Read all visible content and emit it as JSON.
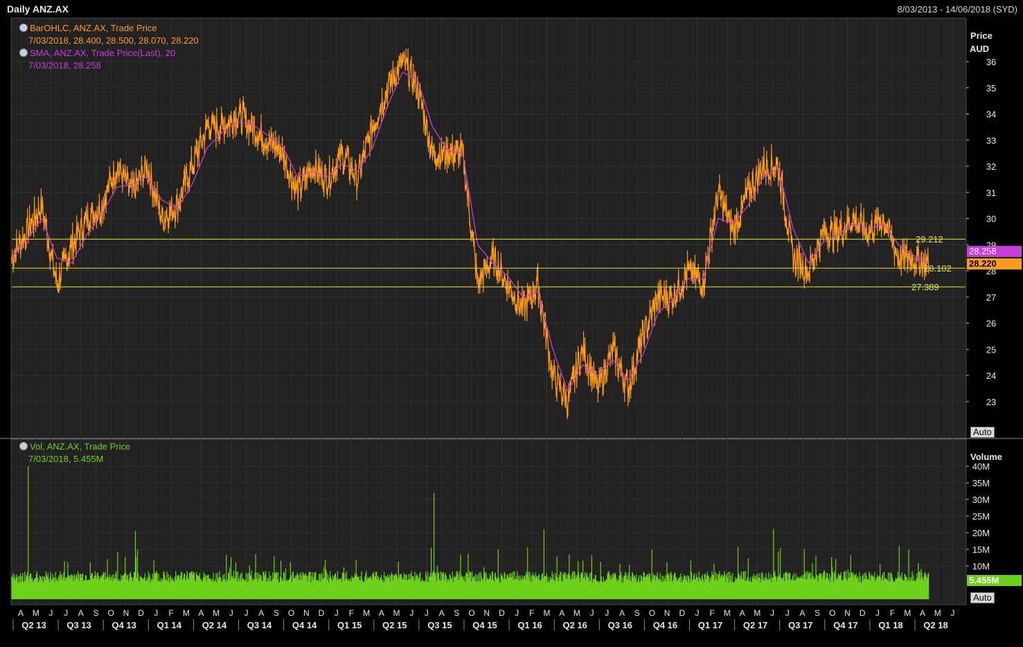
{
  "header": {
    "title": "Daily ANZ.AX",
    "date_range": "8/03/2013 - 14/06/2018 (SYD)"
  },
  "colors": {
    "background": "#222222",
    "price_line": "#ff9a1a",
    "sma_line": "#c83cdc",
    "volume_bars": "#6fd01b",
    "reference_lines": "#e6e62a",
    "current_price_tag": "#ff9a1a",
    "sma_tag": "#c83cdc"
  },
  "price_panel": {
    "legend": {
      "ohlc_title": "BarOHLC, ANZ.AX, Trade Price",
      "ohlc_values": "7/03/2018, 28.400, 28.500, 28.070, 28.220",
      "sma_title": "SMA, ANZ.AX, Trade Price(Last),  20",
      "sma_values": "7/03/2018, 28.258"
    },
    "axis_title_1": "Price",
    "axis_title_2": "AUD",
    "auto_button": "Auto",
    "last_price_tag": "28.220",
    "sma_tag": "28.258",
    "reference_lines": [
      {
        "value": 29.212,
        "label": "29.212"
      },
      {
        "value": 28.102,
        "label": "28.102"
      },
      {
        "value": 27.389,
        "label": "27.389"
      }
    ]
  },
  "volume_panel": {
    "legend_title": "Vol, ANZ.AX, Trade Price",
    "legend_values": "7/03/2018, 5.455M",
    "axis_title": "Volume",
    "auto_button": "Auto",
    "last_volume_tag": "5.455M"
  },
  "chart_data": {
    "type": "line",
    "title": "Daily ANZ.AX",
    "price_ylim": [
      22,
      37
    ],
    "price_yticks": [
      "23",
      "24",
      "25",
      "26",
      "27",
      "28",
      "29",
      "30",
      "31",
      "32",
      "33",
      "34",
      "35",
      "36"
    ],
    "volume_yticks": [
      "10M",
      "15M",
      "20M",
      "25M",
      "30M",
      "35M",
      "40M"
    ],
    "volume_ylim": [
      0,
      42
    ],
    "months": [
      "A",
      "M",
      "J",
      "J",
      "A",
      "S",
      "O",
      "N",
      "D",
      "J",
      "F",
      "M",
      "A",
      "M",
      "J",
      "J",
      "A",
      "S",
      "O",
      "N",
      "D",
      "J",
      "F",
      "M",
      "A",
      "M",
      "J",
      "J",
      "A",
      "S",
      "O",
      "N",
      "D",
      "J",
      "F",
      "M",
      "A",
      "M",
      "J",
      "J",
      "A",
      "S",
      "O",
      "N",
      "D",
      "J",
      "F",
      "M",
      "A",
      "M",
      "J",
      "J",
      "A",
      "S",
      "O",
      "N",
      "D",
      "J",
      "F",
      "M",
      "A",
      "M",
      "J"
    ],
    "quarters": [
      "Q2 13",
      "Q3 13",
      "Q4 13",
      "Q1 14",
      "Q2 14",
      "Q3 14",
      "Q4 14",
      "Q1 15",
      "Q2 15",
      "Q3 15",
      "Q4 15",
      "Q1 16",
      "Q2 16",
      "Q3 16",
      "Q4 16",
      "Q1 17",
      "Q2 17",
      "Q3 17",
      "Q4 17",
      "Q1 18",
      "Q2 18"
    ],
    "series": [
      {
        "name": "ANZ.AX",
        "price_monthly": [
          28.5,
          29.5,
          30.5,
          27.5,
          29.0,
          30.0,
          30.5,
          32.0,
          31.0,
          32.0,
          30.0,
          30.5,
          32.0,
          33.5,
          33.5,
          34.0,
          33.5,
          33.0,
          32.5,
          31.0,
          32.0,
          31.5,
          32.5,
          31.5,
          33.5,
          35.0,
          36.0,
          35.0,
          32.5,
          32.5,
          32.5,
          27.5,
          28.5,
          27.5,
          26.5,
          27.5,
          24.0,
          23.0,
          25.0,
          23.5,
          25.0,
          23.5,
          25.5,
          27.0,
          27.0,
          28.0,
          27.5,
          31.0,
          29.5,
          31.0,
          32.0,
          32.0,
          28.5,
          28.0,
          29.5,
          29.5,
          30.0,
          29.5,
          30.0,
          28.5,
          28.5,
          28.2
        ]
      },
      {
        "name": "SMA 20",
        "price_monthly": [
          28.5,
          29.2,
          30.0,
          28.5,
          28.3,
          29.4,
          30.2,
          31.2,
          31.3,
          31.6,
          30.7,
          30.4,
          31.3,
          32.7,
          33.3,
          33.7,
          33.6,
          33.2,
          32.8,
          31.6,
          31.8,
          31.6,
          32.1,
          31.8,
          32.7,
          34.3,
          35.6,
          35.3,
          33.5,
          32.6,
          32.5,
          29.0,
          28.3,
          27.8,
          27.0,
          27.2,
          25.0,
          23.4,
          24.4,
          24.0,
          24.6,
          23.8,
          24.8,
          26.4,
          26.9,
          27.7,
          27.7,
          30.0,
          29.8,
          30.5,
          31.6,
          31.9,
          29.6,
          28.3,
          29.1,
          29.4,
          29.8,
          29.6,
          29.8,
          29.0,
          28.6,
          28.258
        ]
      }
    ]
  }
}
